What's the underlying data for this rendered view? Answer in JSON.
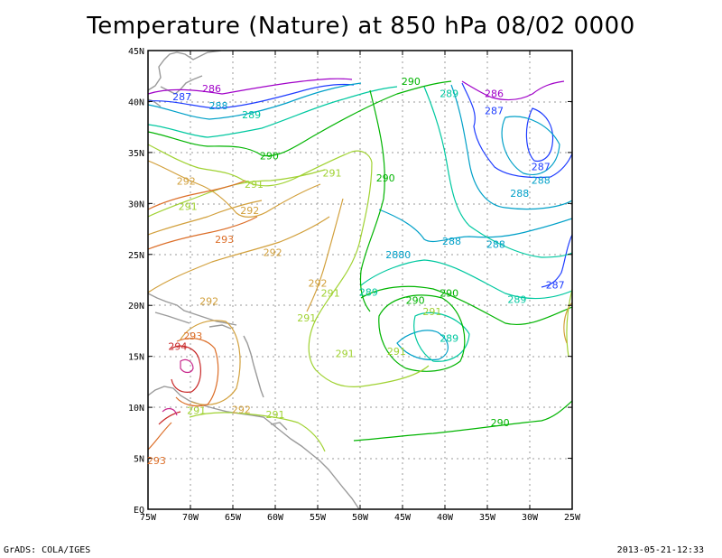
{
  "title": "Temperature (Nature) at 850 hPa 08/02 0000",
  "footer_left": "GrADS: COLA/IGES",
  "footer_right": "2013-05-21-12:33",
  "lon_ticks": [
    "75W",
    "70W",
    "65W",
    "60W",
    "55W",
    "50W",
    "45W",
    "40W",
    "35W",
    "30W",
    "25W"
  ],
  "lat_ticks": [
    "EQ",
    "5N",
    "10N",
    "15N",
    "20N",
    "25N",
    "30N",
    "35N",
    "40N",
    "45N"
  ],
  "contour_labels": [
    {
      "text": "286",
      "lon": -67.5,
      "lat": 41.3,
      "color": "#a000c8"
    },
    {
      "text": "287",
      "lon": -71.0,
      "lat": 40.5,
      "color": "#1e3cff"
    },
    {
      "text": "288",
      "lon": -66.7,
      "lat": 39.6,
      "color": "#00a0c8"
    },
    {
      "text": "289",
      "lon": -62.8,
      "lat": 38.7,
      "color": "#00c8a0"
    },
    {
      "text": "290",
      "lon": -44.0,
      "lat": 42.0,
      "color": "#00b400"
    },
    {
      "text": "289",
      "lon": -39.5,
      "lat": 40.8,
      "color": "#00c8a0"
    },
    {
      "text": "286",
      "lon": -34.2,
      "lat": 40.8,
      "color": "#a000c8"
    },
    {
      "text": "287",
      "lon": -34.2,
      "lat": 39.1,
      "color": "#1e3cff"
    },
    {
      "text": "290",
      "lon": -60.7,
      "lat": 34.7,
      "color": "#00b400"
    },
    {
      "text": "292",
      "lon": -70.5,
      "lat": 32.2,
      "color": "#d2a03c"
    },
    {
      "text": "291",
      "lon": -62.5,
      "lat": 31.9,
      "color": "#a0d232"
    },
    {
      "text": "291",
      "lon": -53.3,
      "lat": 33.0,
      "color": "#a0d232"
    },
    {
      "text": "290",
      "lon": -47.0,
      "lat": 32.5,
      "color": "#00b400"
    },
    {
      "text": "287",
      "lon": -28.7,
      "lat": 33.6,
      "color": "#1e3cff"
    },
    {
      "text": "288",
      "lon": -28.7,
      "lat": 32.3,
      "color": "#00a0c8"
    },
    {
      "text": "291",
      "lon": -70.3,
      "lat": 29.7,
      "color": "#a0d232"
    },
    {
      "text": "292",
      "lon": -63.0,
      "lat": 29.3,
      "color": "#d2a03c"
    },
    {
      "text": "288",
      "lon": -31.2,
      "lat": 31.0,
      "color": "#00a0c8"
    },
    {
      "text": "293",
      "lon": -66.0,
      "lat": 26.5,
      "color": "#dc6e28"
    },
    {
      "text": "292",
      "lon": -60.3,
      "lat": 25.2,
      "color": "#d2a03c"
    },
    {
      "text": "288",
      "lon": -39.2,
      "lat": 26.3,
      "color": "#00a0c8"
    },
    {
      "text": "288",
      "lon": -34.0,
      "lat": 26.0,
      "color": "#00a0c8"
    },
    {
      "text": "2880",
      "lon": -45.5,
      "lat": 25.0,
      "color": "#00a0c8"
    },
    {
      "text": "292",
      "lon": -55.0,
      "lat": 22.2,
      "color": "#d2a03c"
    },
    {
      "text": "291",
      "lon": -53.5,
      "lat": 21.2,
      "color": "#a0d232"
    },
    {
      "text": "289",
      "lon": -49.0,
      "lat": 21.3,
      "color": "#00c8a0"
    },
    {
      "text": "290",
      "lon": -43.5,
      "lat": 20.5,
      "color": "#00b400"
    },
    {
      "text": "290",
      "lon": -39.5,
      "lat": 21.2,
      "color": "#00b400"
    },
    {
      "text": "289",
      "lon": -31.5,
      "lat": 20.6,
      "color": "#00c8a0"
    },
    {
      "text": "287",
      "lon": -27.0,
      "lat": 22.0,
      "color": "#1e3cff"
    },
    {
      "text": "292",
      "lon": -67.8,
      "lat": 20.4,
      "color": "#d2a03c"
    },
    {
      "text": "291",
      "lon": -56.3,
      "lat": 18.8,
      "color": "#a0d232"
    },
    {
      "text": "291",
      "lon": -41.5,
      "lat": 19.4,
      "color": "#a0d232"
    },
    {
      "text": "293",
      "lon": -69.7,
      "lat": 17.0,
      "color": "#dc6e28"
    },
    {
      "text": "294",
      "lon": -71.5,
      "lat": 16.0,
      "color": "#c82828"
    },
    {
      "text": "289",
      "lon": -39.5,
      "lat": 16.8,
      "color": "#00c8a0"
    },
    {
      "text": "291",
      "lon": -51.8,
      "lat": 15.3,
      "color": "#a0d232"
    },
    {
      "text": "291",
      "lon": -45.7,
      "lat": 15.5,
      "color": "#a0d232"
    },
    {
      "text": "291",
      "lon": -69.3,
      "lat": 9.7,
      "color": "#a0d232"
    },
    {
      "text": "292",
      "lon": -64.0,
      "lat": 9.8,
      "color": "#d2a03c"
    },
    {
      "text": "291",
      "lon": -60.0,
      "lat": 9.3,
      "color": "#a0d232"
    },
    {
      "text": "290",
      "lon": -33.5,
      "lat": 8.5,
      "color": "#00b400"
    },
    {
      "text": "293",
      "lon": -74.0,
      "lat": 4.8,
      "color": "#dc6e28"
    },
    {
      "text": "290",
      "lon": -75.5,
      "lat": 37.2,
      "color": "#00b400"
    }
  ],
  "icons": {
    "map-frame": "rectangle-frame"
  }
}
